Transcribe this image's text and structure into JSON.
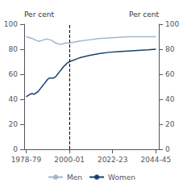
{
  "chart_data": {
    "type": "line",
    "title": "",
    "ylabel": "Per cent",
    "y2label": "Per cent",
    "xlim": [
      1977.5,
      2046.0
    ],
    "xticks": [
      {
        "value": 1978.5,
        "label": "1978-79"
      },
      {
        "value": 2000.5,
        "label": "2000-01"
      },
      {
        "value": 2022.5,
        "label": "2022-23"
      },
      {
        "value": 2044.5,
        "label": "2044-45"
      }
    ],
    "ylim": [
      0,
      100
    ],
    "yticks": [
      0,
      20,
      40,
      60,
      80,
      100
    ],
    "y2lim": [
      0,
      100
    ],
    "y2ticks": [
      0,
      20,
      40,
      60,
      80,
      100
    ],
    "grid": false,
    "legend": "bottom",
    "vline": {
      "x": 2000.5,
      "line_style": "dashed",
      "color": "#000000"
    },
    "series": [
      {
        "name": "Men",
        "color": "#a0b8cc",
        "x": [
          1978.5,
          1979.5,
          1980.5,
          1981.5,
          1982.5,
          1983.5,
          1984.5,
          1985.5,
          1986.5,
          1987.5,
          1988.5,
          1989.5,
          1990.5,
          1991.5,
          1992.5,
          1993.5,
          1994.5,
          1995.5,
          1996.5,
          1997.5,
          1998.5,
          1999.5,
          2000.5
        ],
        "values": [
          90,
          89.5,
          89,
          88.5,
          88,
          87,
          86.5,
          86.5,
          87,
          87.5,
          88,
          88,
          87.5,
          87,
          86,
          85,
          84.5,
          84,
          84,
          84.5,
          85,
          85,
          85
        ]
      },
      {
        "name": "Men",
        "color": "#a0b8cc",
        "x": [
          2000.5,
          2005.5,
          2010.5,
          2015.5,
          2020.5,
          2025.5,
          2030.5,
          2035.5,
          2040.5,
          2044.5
        ],
        "values": [
          85,
          86.5,
          87.5,
          88.5,
          89,
          89.5,
          90,
          90,
          90,
          90
        ]
      },
      {
        "name": "Women",
        "color": "#1a4070",
        "x": [
          1978.5,
          1979.5,
          1980.5,
          1981.5,
          1982.5,
          1983.5,
          1984.5,
          1985.5,
          1986.5,
          1987.5,
          1988.5,
          1989.5,
          1990.5,
          1991.5,
          1992.5,
          1993.5,
          1994.5,
          1995.5,
          1996.5,
          1997.5,
          1998.5,
          1999.5,
          2000.5
        ],
        "values": [
          42,
          43,
          44,
          44.5,
          44,
          45,
          46,
          48,
          50,
          52,
          54,
          56,
          57,
          57,
          57,
          58,
          60,
          62,
          64,
          66,
          67.5,
          69,
          70
        ]
      },
      {
        "name": "Women",
        "color": "#1a4070",
        "x": [
          2000.5,
          2005.5,
          2010.5,
          2015.5,
          2020.5,
          2025.5,
          2030.5,
          2035.5,
          2040.5,
          2044.5
        ],
        "values": [
          70,
          73,
          75,
          76.5,
          77.5,
          78,
          78.5,
          79,
          79.5,
          80
        ]
      }
    ]
  }
}
